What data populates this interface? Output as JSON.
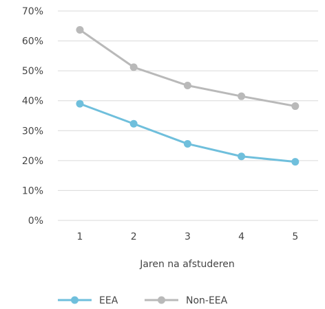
{
  "chart_data": {
    "type": "line",
    "x": [
      1,
      2,
      3,
      4,
      5
    ],
    "categories": [
      "1",
      "2",
      "3",
      "4",
      "5"
    ],
    "series": [
      {
        "name": "EEA",
        "values": [
          39,
          32.3,
          25.6,
          21.4,
          19.6
        ],
        "color": "#6fbfdc"
      },
      {
        "name": "Non-EEA",
        "values": [
          63.7,
          51.2,
          45.1,
          41.5,
          38.2
        ],
        "color": "#b9b9b9"
      }
    ],
    "title": "",
    "xlabel": "Jaren na afstuderen",
    "ylabel": "",
    "ylim": [
      0,
      70
    ],
    "yticks": [
      0,
      10,
      20,
      30,
      40,
      50,
      60,
      70
    ],
    "ytick_labels": [
      "0%",
      "10%",
      "20%",
      "30%",
      "40%",
      "50%",
      "60%",
      "70%"
    ],
    "grid": true,
    "legend_position": "bottom-left"
  }
}
